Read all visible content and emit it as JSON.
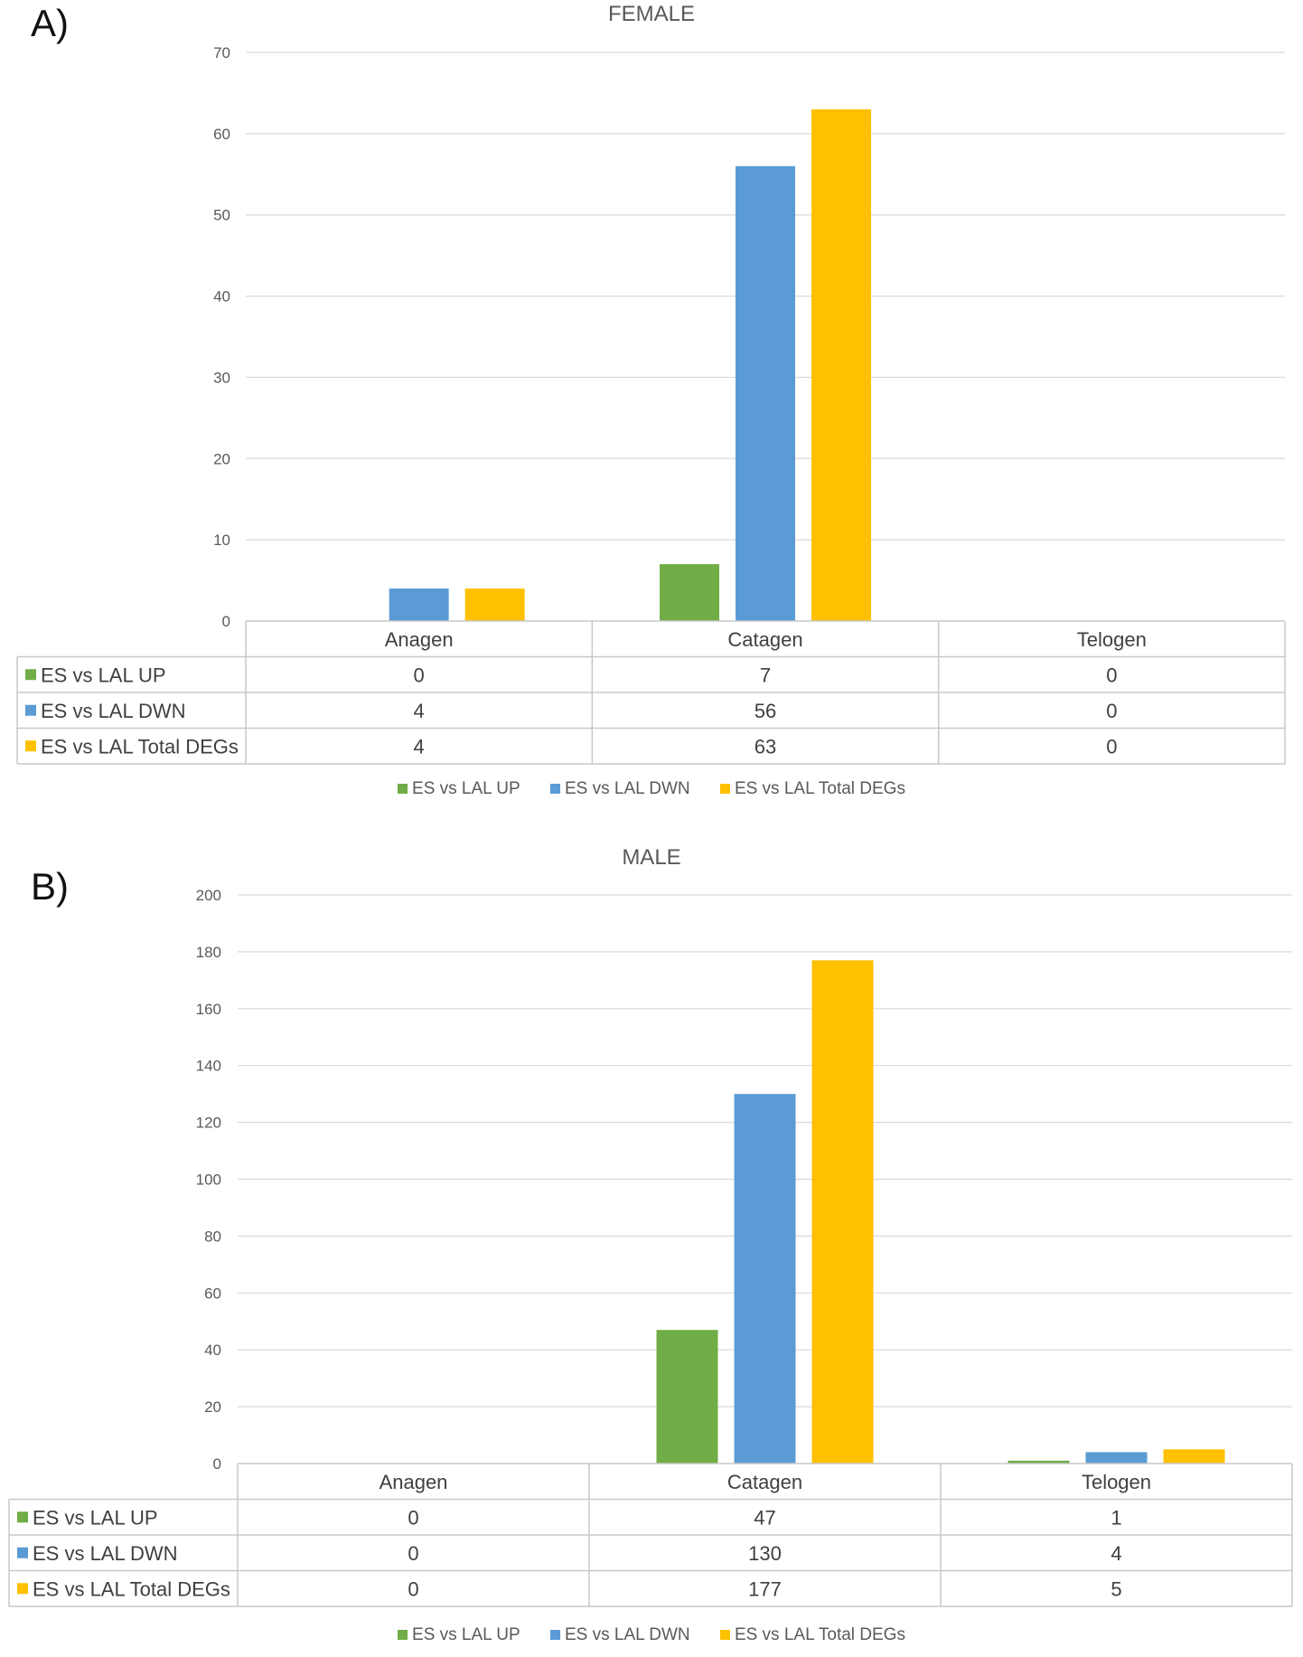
{
  "chart_data": [
    {
      "type": "bar",
      "panel_label": "A)",
      "title": "FEMALE",
      "categories": [
        "Anagen",
        "Catagen",
        "Telogen"
      ],
      "ylim": [
        0,
        70
      ],
      "yticks": [
        0,
        10,
        20,
        30,
        40,
        50,
        60,
        70
      ],
      "grid": true,
      "legend_position": "bottom",
      "data_table": true,
      "series": [
        {
          "name": "ES vs LAL UP",
          "color": "#70AD47",
          "values": [
            0,
            7,
            0
          ]
        },
        {
          "name": "ES vs LAL DWN",
          "color": "#5B9BD5",
          "values": [
            4,
            56,
            0
          ]
        },
        {
          "name": "ES vs LAL Total DEGs",
          "color": "#FFC000",
          "values": [
            4,
            63,
            0
          ]
        }
      ]
    },
    {
      "type": "bar",
      "panel_label": "B)",
      "title": "MALE",
      "categories": [
        "Anagen",
        "Catagen",
        "Telogen"
      ],
      "ylim": [
        0,
        200
      ],
      "yticks": [
        0,
        20,
        40,
        60,
        80,
        100,
        120,
        140,
        160,
        180,
        200
      ],
      "grid": true,
      "legend_position": "bottom",
      "data_table": true,
      "series": [
        {
          "name": "ES vs LAL UP",
          "color": "#70AD47",
          "values": [
            0,
            47,
            1
          ]
        },
        {
          "name": "ES vs LAL DWN",
          "color": "#5B9BD5",
          "values": [
            0,
            130,
            4
          ]
        },
        {
          "name": "ES vs LAL Total DEGs",
          "color": "#FFC000",
          "values": [
            0,
            177,
            5
          ]
        }
      ]
    }
  ]
}
